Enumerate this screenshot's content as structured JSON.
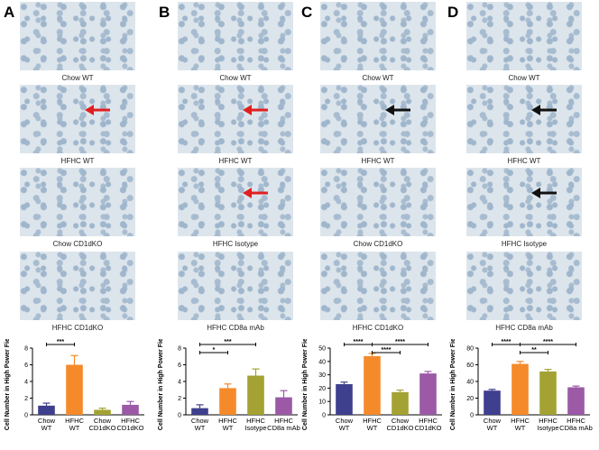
{
  "panels": [
    {
      "letter": "A",
      "images": [
        {
          "label": "Chow WT"
        },
        {
          "label": "HFHC WT"
        },
        {
          "label": "Chow CD1dKO"
        },
        {
          "label": "HFHC CD1dKO"
        }
      ]
    },
    {
      "letter": "B",
      "images": [
        {
          "label": "Chow WT"
        },
        {
          "label": "HFHC WT"
        },
        {
          "label": "HFHC Isotype"
        },
        {
          "label": "HFHC CD8a mAb"
        }
      ]
    },
    {
      "letter": "C",
      "images": [
        {
          "label": "Chow WT"
        },
        {
          "label": "HFHC WT"
        },
        {
          "label": "Chow CD1dKO"
        },
        {
          "label": "HFHC CD1dKO"
        }
      ]
    },
    {
      "letter": "D",
      "images": [
        {
          "label": "Chow WT"
        },
        {
          "label": "HFHC WT"
        },
        {
          "label": "HFHC Isotype"
        },
        {
          "label": "HFHC CD8a mAb"
        }
      ]
    }
  ],
  "chart_data": [
    {
      "type": "bar",
      "y_label": "Cell Number in High Power Field",
      "categories": [
        "Chow\nWT",
        "HFHC\nWT",
        "Chow\nCD1dKO",
        "HFHC\nCD1dKO"
      ],
      "values": [
        1.1,
        6.0,
        0.6,
        1.2
      ],
      "errors": [
        0.3,
        1.1,
        0.2,
        0.4
      ],
      "colors": [
        "#3f3f8f",
        "#f58a2a",
        "#a3a233",
        "#9b59a6"
      ],
      "ylim": [
        0,
        8
      ],
      "yticks": [
        0,
        2,
        4,
        6,
        8
      ],
      "annotations": [
        {
          "label": "***",
          "from": "Chow\nWT",
          "to": "HFHC\nWT"
        }
      ]
    },
    {
      "type": "bar",
      "y_label": "Cell Number in High Power Field",
      "categories": [
        "Chow\nWT",
        "HFHC\nWT",
        "HFHC\nIsotype",
        "HFHC\nCD8a mAb"
      ],
      "values": [
        0.8,
        3.2,
        4.7,
        2.1
      ],
      "errors": [
        0.4,
        0.5,
        0.8,
        0.8
      ],
      "colors": [
        "#3f3f8f",
        "#f58a2a",
        "#a3a233",
        "#9b59a6"
      ],
      "ylim": [
        0,
        8
      ],
      "yticks": [
        0,
        2,
        4,
        6,
        8
      ],
      "annotations": [
        {
          "label": "***",
          "from": "Chow\nWT",
          "to": "HFHC\nIsotype"
        },
        {
          "label": "*",
          "from": "Chow\nWT",
          "to": "HFHC\nWT"
        }
      ]
    },
    {
      "type": "bar",
      "y_label": "Cell Number in High Power Field",
      "categories": [
        "Chow\nWT",
        "HFHC\nWT",
        "Chow\nCD1dKO",
        "HFHC\nCD1dKO"
      ],
      "values": [
        23,
        44,
        17,
        31
      ],
      "errors": [
        1.5,
        2,
        1.5,
        1.5
      ],
      "colors": [
        "#3f3f8f",
        "#f58a2a",
        "#a3a233",
        "#9b59a6"
      ],
      "ylim": [
        0,
        50
      ],
      "yticks": [
        0,
        10,
        20,
        30,
        40,
        50
      ],
      "annotations": [
        {
          "label": "****",
          "from": "Chow\nWT",
          "to": "HFHC\nWT"
        },
        {
          "label": "****",
          "from": "HFHC\nWT",
          "to": "HFHC\nCD1dKO"
        },
        {
          "label": "****",
          "from": "HFHC\nWT",
          "to": "Chow\nCD1dKO"
        }
      ]
    },
    {
      "type": "bar",
      "y_label": "Cell Number in High Power Field",
      "categories": [
        "Chow\nWT",
        "HFHC\nWT",
        "HFHC\nIsotype",
        "HFHC\nCD8a mAb"
      ],
      "values": [
        29,
        61,
        52,
        33
      ],
      "errors": [
        1.5,
        3,
        2.5,
        1.5
      ],
      "colors": [
        "#3f3f8f",
        "#f58a2a",
        "#a3a233",
        "#9b59a6"
      ],
      "ylim": [
        0,
        80
      ],
      "yticks": [
        0,
        20,
        40,
        60,
        80
      ],
      "annotations": [
        {
          "label": "****",
          "from": "Chow\nWT",
          "to": "HFHC\nWT"
        },
        {
          "label": "****",
          "from": "HFHC\nWT",
          "to": "HFHC\nCD8a mAb"
        },
        {
          "label": "**",
          "from": "HFHC\nWT",
          "to": "HFHC\nIsotype"
        }
      ]
    }
  ]
}
